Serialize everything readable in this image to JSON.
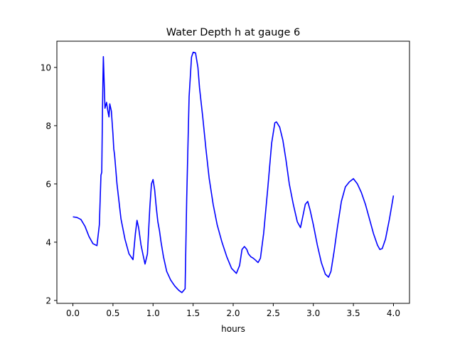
{
  "chart_data": {
    "type": "line",
    "title": "Water Depth h at gauge 6",
    "xlabel": "hours",
    "ylabel": "",
    "xlim": [
      -0.2,
      4.2
    ],
    "ylim": [
      1.9,
      10.9
    ],
    "xticks": [
      0.0,
      0.5,
      1.0,
      1.5,
      2.0,
      2.5,
      3.0,
      3.5,
      4.0
    ],
    "xtick_labels": [
      "0.0",
      "0.5",
      "1.0",
      "1.5",
      "2.0",
      "2.5",
      "3.0",
      "3.5",
      "4.0"
    ],
    "yticks": [
      2,
      4,
      6,
      8,
      10
    ],
    "ytick_labels": [
      "2",
      "4",
      "6",
      "8",
      "10"
    ],
    "grid": false,
    "legend": "none",
    "series": [
      {
        "color": "#0000ff",
        "x": [
          0.0,
          0.05,
          0.1,
          0.15,
          0.2,
          0.25,
          0.3,
          0.33,
          0.35,
          0.36,
          0.37,
          0.375,
          0.38,
          0.39,
          0.4,
          0.42,
          0.43,
          0.45,
          0.46,
          0.48,
          0.49,
          0.5,
          0.51,
          0.52,
          0.55,
          0.6,
          0.65,
          0.7,
          0.75,
          0.78,
          0.8,
          0.82,
          0.85,
          0.88,
          0.9,
          0.93,
          0.96,
          0.98,
          1.0,
          1.02,
          1.04,
          1.06,
          1.08,
          1.1,
          1.13,
          1.17,
          1.22,
          1.27,
          1.32,
          1.36,
          1.4,
          1.42,
          1.45,
          1.48,
          1.5,
          1.53,
          1.56,
          1.58,
          1.62,
          1.66,
          1.7,
          1.75,
          1.8,
          1.86,
          1.92,
          1.98,
          2.04,
          2.08,
          2.11,
          2.14,
          2.17,
          2.19,
          2.22,
          2.25,
          2.28,
          2.31,
          2.34,
          2.38,
          2.43,
          2.48,
          2.52,
          2.54,
          2.58,
          2.62,
          2.66,
          2.7,
          2.75,
          2.8,
          2.84,
          2.87,
          2.9,
          2.93,
          2.96,
          3.0,
          3.05,
          3.1,
          3.15,
          3.19,
          3.22,
          3.26,
          3.3,
          3.35,
          3.4,
          3.45,
          3.5,
          3.55,
          3.6,
          3.65,
          3.7,
          3.75,
          3.8,
          3.83,
          3.86,
          3.9,
          3.95,
          4.0
        ],
        "y": [
          4.87,
          4.85,
          4.78,
          4.55,
          4.2,
          3.95,
          3.88,
          4.6,
          6.3,
          6.4,
          8.7,
          9.6,
          10.37,
          9.5,
          8.6,
          8.8,
          8.6,
          8.3,
          8.75,
          8.5,
          8.1,
          7.7,
          7.2,
          7.0,
          6.0,
          4.8,
          4.1,
          3.6,
          3.4,
          4.3,
          4.75,
          4.5,
          3.9,
          3.5,
          3.25,
          3.6,
          5.2,
          6.0,
          6.15,
          5.8,
          5.2,
          4.7,
          4.4,
          4.0,
          3.5,
          3.0,
          2.7,
          2.5,
          2.35,
          2.27,
          2.4,
          5.5,
          9.0,
          10.35,
          10.52,
          10.5,
          10.0,
          9.3,
          8.3,
          7.2,
          6.2,
          5.3,
          4.6,
          4.0,
          3.5,
          3.1,
          2.93,
          3.2,
          3.75,
          3.85,
          3.75,
          3.6,
          3.5,
          3.45,
          3.38,
          3.3,
          3.45,
          4.3,
          5.8,
          7.4,
          8.1,
          8.13,
          7.95,
          7.5,
          6.8,
          6.0,
          5.3,
          4.7,
          4.5,
          4.9,
          5.3,
          5.4,
          5.1,
          4.6,
          3.9,
          3.3,
          2.9,
          2.8,
          3.0,
          3.7,
          4.5,
          5.4,
          5.9,
          6.07,
          6.18,
          6.0,
          5.7,
          5.3,
          4.8,
          4.3,
          3.9,
          3.75,
          3.78,
          4.1,
          4.8,
          5.6
        ]
      }
    ]
  }
}
